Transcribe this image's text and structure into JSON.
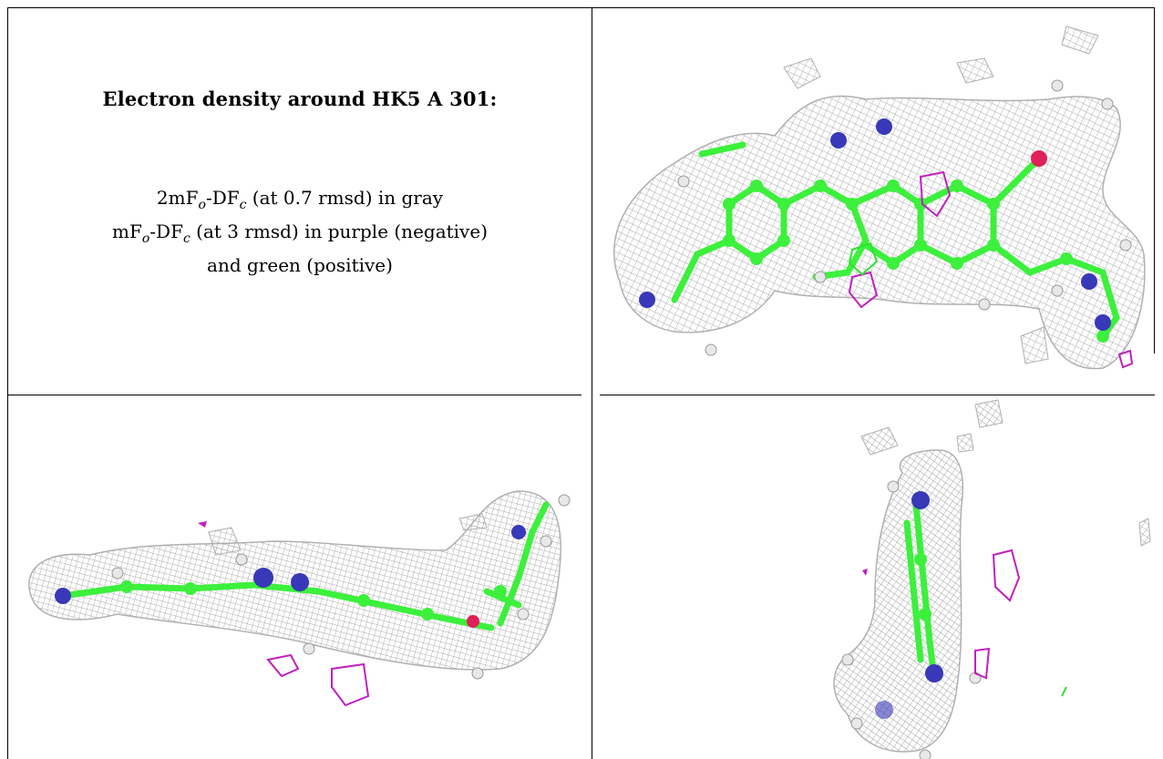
{
  "caption": {
    "title": "Electron density around HK5 A 301:",
    "line1": {
      "pre": "2mF",
      "sub1": "o",
      "mid": "-DF",
      "sub2": "c",
      "post": " (at 0.7 rmsd) in gray"
    },
    "line2": {
      "pre": "mF",
      "sub1": "o",
      "mid": "-DF",
      "sub2": "c",
      "post": " (at 3 rmsd) in purple (negative)"
    },
    "line3": "and green (positive)"
  },
  "colors": {
    "mesh": "#a8a8a8",
    "carbon": "#3cf03c",
    "nitrogen": "#3838b8",
    "oxygen": "#e0205a",
    "hydrogen": "#e8e8e8",
    "negative_density": "#c020c0",
    "positive_density": "#30e030",
    "border": "#000000"
  },
  "panels": [
    {
      "view": "front"
    },
    {
      "view": "edge-on horizontal"
    },
    {
      "view": "edge-on vertical"
    }
  ]
}
